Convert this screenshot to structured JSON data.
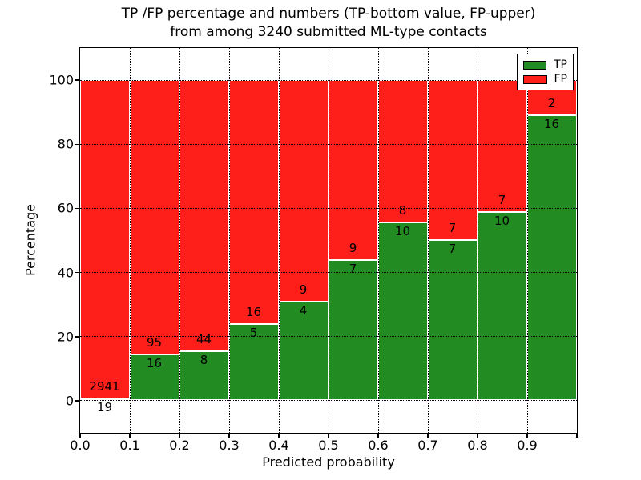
{
  "title": {
    "line1": "TP /FP percentage and numbers (TP-bottom value, FP-upper)",
    "line2": "from among 3240 submitted ML-type contacts"
  },
  "axes": {
    "xlabel": "Predicted probability",
    "ylabel": "Percentage",
    "x_tick_labels": [
      "0.0",
      "0.1",
      "0.2",
      "0.3",
      "0.4",
      "0.5",
      "0.6",
      "0.7",
      "0.8",
      "0.9"
    ],
    "y_tick_labels": [
      "0",
      "20",
      "40",
      "60",
      "80",
      "100"
    ]
  },
  "legend": {
    "items": [
      {
        "label": "TP",
        "color": "#228b22"
      },
      {
        "label": "FP",
        "color": "#ff1f1a"
      }
    ]
  },
  "colors": {
    "tp_green": "#228b22",
    "fp_red": "#ff1f1a",
    "grid": "#000000",
    "background": "#ffffff"
  },
  "chart_data": {
    "type": "bar",
    "stacked": true,
    "normalized_to_percent": true,
    "title": "TP /FP percentage and numbers (TP-bottom value, FP-upper) from among 3240 submitted ML-type contacts",
    "xlabel": "Predicted probability",
    "ylabel": "Percentage",
    "xlim": [
      0.0,
      1.0
    ],
    "ylim": [
      -10,
      110
    ],
    "bin_width": 0.1,
    "grid": "dotted, both axes, at x=0.1..0.9 and y=0,20,40,60,80,100",
    "legend_position": "upper right",
    "categories": [
      "0.0-0.1",
      "0.1-0.2",
      "0.2-0.3",
      "0.3-0.4",
      "0.4-0.5",
      "0.5-0.6",
      "0.6-0.7",
      "0.7-0.8",
      "0.8-0.9",
      "0.9-1.0"
    ],
    "bin_starts": [
      0.0,
      0.1,
      0.2,
      0.3,
      0.4,
      0.5,
      0.6,
      0.7,
      0.8,
      0.9
    ],
    "series": [
      {
        "name": "TP",
        "color": "#228b22",
        "counts": [
          19,
          16,
          8,
          5,
          4,
          7,
          10,
          7,
          10,
          16
        ]
      },
      {
        "name": "FP",
        "color": "#ff1f1a",
        "counts": [
          2941,
          95,
          44,
          16,
          9,
          9,
          8,
          7,
          7,
          2
        ]
      }
    ],
    "tp_percent": [
      0.64,
      14.41,
      15.38,
      23.81,
      30.77,
      43.75,
      55.56,
      50.0,
      58.82,
      88.89
    ],
    "total_contacts": 3240,
    "note": "Each bar spans 100%; green TP portion at bottom, red FP on top. Count labels: TP just below segment boundary, FP just above it."
  }
}
